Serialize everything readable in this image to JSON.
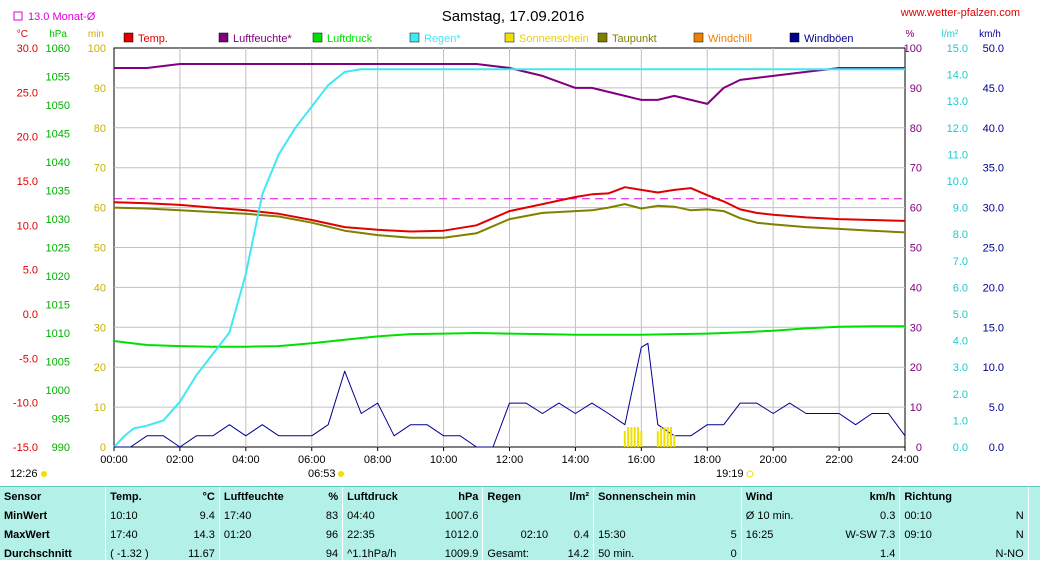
{
  "header": {
    "title": "Samstag, 17.09.2016",
    "website": "www.wetter-pfalzen.com",
    "monthly_avg_label": "13.0 Monat-Ø"
  },
  "axes": {
    "temp_unit": "°C",
    "pressure_unit": "hPa",
    "min_unit": "min",
    "percent_unit": "%",
    "rain_unit": "l/m²",
    "wind_unit": "km/h",
    "temp_ticks": [
      "30.0",
      "25.0",
      "20.0",
      "15.0",
      "10.0",
      "5.0",
      "0.0",
      "-5.0",
      "-10.0",
      "-15.0"
    ],
    "pressure_ticks": [
      "1060",
      "1055",
      "1050",
      "1045",
      "1040",
      "1035",
      "1030",
      "1025",
      "1020",
      "1015",
      "1010",
      "1005",
      "1000",
      "995",
      "990"
    ],
    "min_ticks": [
      "100",
      "90",
      "80",
      "70",
      "60",
      "50",
      "40",
      "30",
      "20",
      "10",
      "0"
    ],
    "percent_ticks": [
      "100",
      "90",
      "80",
      "70",
      "60",
      "50",
      "40",
      "30",
      "20",
      "10",
      "0"
    ],
    "rain_ticks": [
      "15.0",
      "14.0",
      "13.0",
      "12.0",
      "11.0",
      "10.0",
      "9.0",
      "8.0",
      "7.0",
      "6.0",
      "5.0",
      "4.0",
      "3.0",
      "2.0",
      "1.0",
      "0.0"
    ],
    "wind_ticks": [
      "50.0",
      "45.0",
      "40.0",
      "35.0",
      "30.0",
      "25.0",
      "20.0",
      "15.0",
      "10.0",
      "5.0",
      "0.0"
    ],
    "time_ticks": [
      "00:00",
      "02:00",
      "04:00",
      "06:00",
      "08:00",
      "10:00",
      "12:00",
      "14:00",
      "16:00",
      "18:00",
      "20:00",
      "22:00",
      "24:00"
    ]
  },
  "sun": {
    "moonrise": "12:26",
    "sunrise": "06:53",
    "sunset": "19:19"
  },
  "chart_data": {
    "type": "line",
    "x_unit": "hours",
    "xlim": [
      0,
      24
    ],
    "legend": [
      {
        "name": "Temp.",
        "color": "#e00000"
      },
      {
        "name": "Luftfeuchte*",
        "color": "#800080"
      },
      {
        "name": "Luftdruck",
        "color": "#00e000"
      },
      {
        "name": "Regen*",
        "color": "#40e8f0"
      },
      {
        "name": "Sonnenschein",
        "color": "#f0e000"
      },
      {
        "name": "Taupunkt",
        "color": "#808000"
      },
      {
        "name": "Windchill",
        "color": "#f08000"
      },
      {
        "name": "Windböen",
        "color": "#000090"
      }
    ],
    "monthly_avg_temp": 13.0,
    "series": [
      {
        "name": "Temp.",
        "unit": "°C",
        "color": "#e00000",
        "x": [
          0,
          1,
          2,
          3,
          4,
          5,
          6,
          7,
          8,
          9,
          10,
          11,
          11.5,
          12,
          13,
          14,
          14.5,
          15,
          15.5,
          16,
          16.5,
          17,
          17.5,
          18,
          18.5,
          19,
          19.5,
          20,
          21,
          22,
          23,
          24
        ],
        "y": [
          12.6,
          12.5,
          12.3,
          12.0,
          11.7,
          11.3,
          10.6,
          9.8,
          9.5,
          9.3,
          9.4,
          10.0,
          10.8,
          11.6,
          12.4,
          13.2,
          13.5,
          13.6,
          14.3,
          14.0,
          13.7,
          14.0,
          14.2,
          13.4,
          12.7,
          11.8,
          11.4,
          11.2,
          10.9,
          10.7,
          10.6,
          10.5
        ]
      },
      {
        "name": "Taupunkt",
        "unit": "°C",
        "color": "#808000",
        "x": [
          0,
          1,
          2,
          3,
          4,
          5,
          6,
          7,
          8,
          9,
          10,
          11,
          11.5,
          12,
          13,
          14,
          14.5,
          15,
          15.5,
          16,
          16.5,
          17,
          17.5,
          18,
          18.5,
          19,
          19.5,
          20,
          21,
          22,
          23,
          24
        ],
        "y": [
          12.0,
          11.9,
          11.7,
          11.5,
          11.3,
          11.0,
          10.3,
          9.4,
          8.9,
          8.6,
          8.6,
          9.1,
          9.9,
          10.7,
          11.4,
          11.6,
          11.7,
          12.0,
          12.4,
          11.9,
          12.2,
          12.1,
          11.7,
          11.8,
          11.6,
          10.8,
          10.3,
          10.1,
          9.8,
          9.6,
          9.4,
          9.2
        ]
      },
      {
        "name": "Luftfeuchte*",
        "unit": "%",
        "color": "#800080",
        "x": [
          0,
          1,
          2,
          3,
          4,
          5,
          6,
          7,
          8,
          9,
          10,
          11,
          12,
          13,
          14,
          14.5,
          15,
          15.5,
          16,
          16.5,
          17,
          17.5,
          18,
          18.5,
          19,
          20,
          21,
          22,
          23,
          24
        ],
        "y": [
          95,
          95,
          96,
          96,
          96,
          96,
          96,
          96,
          96,
          96,
          96,
          96,
          95,
          93,
          90,
          90,
          89,
          88,
          87,
          87,
          88,
          87,
          86,
          90,
          92,
          93,
          94,
          95,
          95,
          95
        ]
      },
      {
        "name": "Luftdruck",
        "unit": "hPa",
        "color": "#00e000",
        "x": [
          0,
          1,
          2,
          3,
          4,
          5,
          6,
          7,
          8,
          9,
          10,
          11,
          12,
          13,
          14,
          15,
          16,
          17,
          18,
          19,
          20,
          21,
          22,
          23,
          24
        ],
        "y": [
          1008.6,
          1007.9,
          1007.7,
          1007.6,
          1007.6,
          1007.7,
          1008.2,
          1008.8,
          1009.4,
          1009.8,
          1009.9,
          1010.0,
          1009.9,
          1009.8,
          1009.7,
          1009.7,
          1009.7,
          1009.8,
          1009.9,
          1010.1,
          1010.4,
          1010.8,
          1011.1,
          1011.2,
          1011.2
        ]
      },
      {
        "name": "Regen*",
        "unit": "l/m²",
        "color": "#40e8f0",
        "x": [
          0,
          0.3,
          0.6,
          1,
          1.5,
          2,
          2.5,
          3,
          3.5,
          4,
          4.5,
          5,
          5.5,
          6,
          6.5,
          7,
          7.5,
          8,
          9,
          10,
          11,
          12,
          14,
          16,
          18,
          20,
          24
        ],
        "y": [
          0,
          0.4,
          0.7,
          0.8,
          1.0,
          1.7,
          2.7,
          3.5,
          4.3,
          6.5,
          9.5,
          11.0,
          12.0,
          12.8,
          13.6,
          14.1,
          14.2,
          14.2,
          14.2,
          14.2,
          14.2,
          14.2,
          14.2,
          14.2,
          14.2,
          14.2,
          14.2
        ]
      },
      {
        "name": "Windböen",
        "unit": "km/h",
        "color": "#000090",
        "x": [
          0,
          0.5,
          1,
          1.5,
          2,
          2.5,
          3,
          3.5,
          4,
          4.5,
          5,
          5.5,
          6,
          6.5,
          7,
          7.5,
          8,
          8.5,
          9,
          9.5,
          10,
          10.5,
          11,
          11.5,
          12,
          12.5,
          13,
          13.5,
          14,
          14.5,
          15,
          15.5,
          16,
          16.2,
          16.5,
          17,
          17.5,
          18,
          18.5,
          19,
          19.5,
          20,
          20.5,
          21,
          21.5,
          22,
          22.5,
          23,
          23.5,
          24
        ],
        "y": [
          0,
          0,
          1.4,
          1.4,
          0,
          1.4,
          1.4,
          2.8,
          1.4,
          2.8,
          1.4,
          1.4,
          1.4,
          2.8,
          9.5,
          4.2,
          5.5,
          1.4,
          2.8,
          2.8,
          1.4,
          1.4,
          0,
          0,
          5.5,
          5.5,
          4.2,
          5.5,
          4.2,
          5.5,
          4.2,
          2.8,
          12.5,
          13.0,
          2.8,
          1.4,
          1.4,
          2.8,
          2.8,
          5.5,
          5.5,
          4.2,
          5.5,
          4.2,
          4.2,
          4.2,
          2.8,
          4.2,
          4.2,
          1.4
        ]
      },
      {
        "name": "Sonnenschein",
        "unit": "min",
        "color": "#f0e000",
        "x": [
          15.5,
          15.6,
          15.7,
          15.8,
          15.9,
          16.0,
          16.5,
          16.6,
          16.7,
          16.8,
          16.9,
          17.0
        ],
        "y": [
          4,
          5,
          5,
          5,
          5,
          4,
          4,
          5,
          5,
          5,
          5,
          3
        ]
      }
    ]
  },
  "stats": {
    "headers": {
      "sensor": "Sensor",
      "temp": "Temp.",
      "temp_unit": "°C",
      "hum": "Luftfeuchte",
      "hum_unit": "%",
      "press": "Luftdruck",
      "press_unit": "hPa",
      "rain": "Regen",
      "rain_unit": "l/m²",
      "sun": "Sonnenschein min",
      "wind": "Wind",
      "wind_unit": "km/h",
      "dir": "Richtung"
    },
    "min": {
      "label": "MinWert",
      "temp_time": "10:10",
      "temp": "9.4",
      "hum_time": "17:40",
      "hum": "83",
      "press_time": "04:40",
      "press": "1007.6",
      "rain_time": "",
      "rain": "",
      "sun_time": "",
      "sun": "",
      "wind_label": "Ø 10 min.",
      "wind": "0.3",
      "dir_time": "00:10",
      "dir": "N"
    },
    "max": {
      "label": "MaxWert",
      "temp_time": "17:40",
      "temp": "14.3",
      "hum_time": "01:20",
      "hum": "96",
      "press_time": "22:35",
      "press": "1012.0",
      "rain_time": "02:10",
      "rain": "0.4",
      "sun_time": "15:30",
      "sun": "5",
      "wind_time": "16:25",
      "wind": "W-SW 7.3",
      "dir_time": "09:10",
      "dir": "N"
    },
    "avg": {
      "label": "Durchschnitt",
      "temp_time": "( -1.32 )",
      "temp": "11.67",
      "hum": "94",
      "press_trend": "^1.1hPa/h",
      "press": "1009.9",
      "rain_label": "Gesamt:",
      "rain": "14.2",
      "sun_label": "50 min.",
      "sun": "0",
      "wind": "1.4",
      "dir": "N-NO"
    }
  }
}
